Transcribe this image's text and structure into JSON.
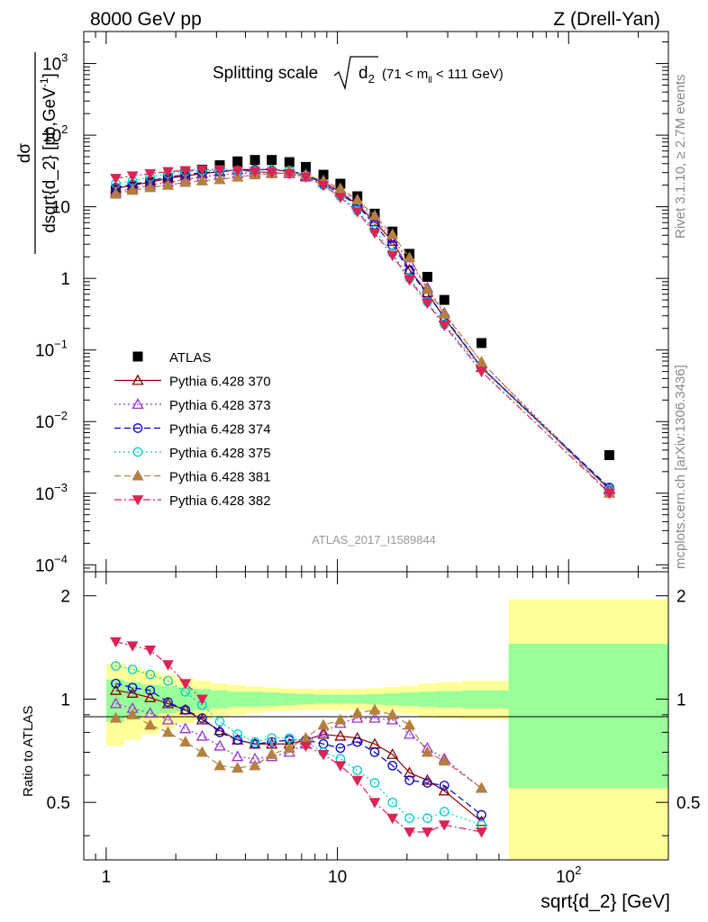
{
  "header": {
    "left": "8000 GeV pp",
    "right": "Z (Drell-Yan)",
    "side_top": "Rivet 3.1.10, ≥ 2.7M events",
    "side_bottom": "mcplots.cern.ch [arXiv:1306.3436]",
    "analysis_id": "ATLAS_2017_I1589844"
  },
  "title": {
    "prefix": "Splitting scale",
    "var": "d",
    "sub": "2",
    "cut_pre": "(71 < m",
    "cut_sub": "ll",
    "cut_post": " < 111 GeV)"
  },
  "axes": {
    "xlabel": "sqrt{d_2} [GeV]",
    "ylabel_top": "dσ",
    "ylabel_bottom": "dsqrt{d_2} [pb,GeV",
    "ylabel_sup": "-1",
    "ylabel_close": "]",
    "ratio_ylabel": "Ratio to ATLAS",
    "x_ticklabels": [
      {
        "v": 1,
        "base": "1",
        "exp": ""
      },
      {
        "v": 10,
        "base": "10",
        "exp": ""
      },
      {
        "v": 100,
        "base": "10",
        "exp": "2"
      }
    ],
    "y_ticklabels": [
      {
        "v": 1000,
        "base": "10",
        "exp": "3"
      },
      {
        "v": 100,
        "base": "10",
        "exp": "2"
      },
      {
        "v": 10,
        "base": "10",
        "exp": ""
      },
      {
        "v": 1,
        "base": "1",
        "exp": ""
      },
      {
        "v": 0.1,
        "base": "10",
        "exp": "−1"
      },
      {
        "v": 0.01,
        "base": "10",
        "exp": "−2"
      },
      {
        "v": 0.001,
        "base": "10",
        "exp": "−3"
      },
      {
        "v": 0.0001,
        "base": "10",
        "exp": "−4"
      }
    ],
    "ratio_ticklabels": [
      {
        "v": 2,
        "label": "2"
      },
      {
        "v": 1,
        "label": "1"
      },
      {
        "v": 0.5,
        "label": "0.5"
      }
    ]
  },
  "chart_data": {
    "type": "scatter",
    "x_scale": "log",
    "y_scale": "log",
    "xlim": [
      0.8,
      270
    ],
    "ylim": [
      8e-05,
      2800
    ],
    "ratio_ylim": [
      0.34,
      2.35
    ],
    "x": [
      1.1,
      1.3,
      1.55,
      1.85,
      2.2,
      2.6,
      3.1,
      3.7,
      4.4,
      5.2,
      6.2,
      7.3,
      8.7,
      10.3,
      12.2,
      14.5,
      17.3,
      20.5,
      24.5,
      29.0,
      42.0,
      150.0
    ],
    "series": [
      {
        "name": "ATLAS",
        "color": "#000000",
        "marker": "square",
        "line": "none",
        "values": [
          17,
          19,
          22,
          25,
          29,
          33,
          38,
          43,
          45,
          45,
          42,
          36,
          28,
          21,
          14,
          8,
          4.5,
          2.2,
          1.05,
          0.5,
          0.125,
          0.0034
        ]
      },
      {
        "name": "Pythia 6.428 370",
        "color": "#8b0000",
        "marker": "triangle-open",
        "line": "solid",
        "values": [
          18,
          20,
          22,
          25,
          27,
          29,
          31,
          33,
          33,
          33,
          31,
          27,
          22,
          16,
          10.7,
          6.2,
          3.3,
          1.32,
          0.63,
          0.28,
          0.057,
          0.00115
        ]
      },
      {
        "name": "Pythia 6.428 373",
        "color": "#9933cc",
        "marker": "triangle-open",
        "line": "dotted",
        "values": [
          16,
          18,
          20,
          22,
          24,
          26,
          28,
          29,
          30,
          30,
          29,
          26,
          22,
          17,
          11.8,
          6.8,
          3.6,
          1.68,
          0.74,
          0.33,
          0.067,
          0.0011
        ]
      },
      {
        "name": "Pythia 6.428 374",
        "color": "#0000cc",
        "marker": "circle-open",
        "line": "dashed",
        "values": [
          18.5,
          20.5,
          23,
          26,
          28,
          30,
          31,
          32,
          33,
          33,
          32,
          28,
          21,
          15,
          10.5,
          5.6,
          2.9,
          1.28,
          0.6,
          0.29,
          0.057,
          0.0012
        ]
      },
      {
        "name": "Pythia 6.428 375",
        "color": "#00cccc",
        "marker": "circle-open",
        "line": "dotted",
        "values": [
          21,
          23,
          26,
          29,
          31,
          32,
          32,
          32,
          32,
          33,
          32,
          27,
          20,
          14,
          8.8,
          4.7,
          2.25,
          1.0,
          0.47,
          0.23,
          0.055,
          0.00112
        ]
      },
      {
        "name": "Pythia 6.428 381",
        "color": "#b38040",
        "marker": "triangle",
        "line": "dashed",
        "values": [
          15,
          17,
          18.5,
          20,
          22,
          23,
          24,
          26,
          28,
          29,
          30,
          28,
          23,
          18,
          12.5,
          7.5,
          4.1,
          1.95,
          0.7,
          0.32,
          0.068,
          0.001
        ]
      },
      {
        "name": "Pythia 6.428 382",
        "color": "#dd2255",
        "marker": "triangle-down",
        "line": "dashdot",
        "values": [
          25,
          27,
          29,
          31,
          32,
          33,
          33,
          32,
          31,
          30,
          29,
          26,
          20,
          13.5,
          8.5,
          4.3,
          2.1,
          0.95,
          0.45,
          0.22,
          0.05,
          0.001
        ]
      }
    ],
    "ratios": [
      [
        1.06,
        1.04,
        1.01,
        0.97,
        0.93,
        0.87,
        0.81,
        0.76,
        0.74,
        0.74,
        0.74,
        0.76,
        0.79,
        0.78,
        0.77,
        0.74,
        0.69,
        0.61,
        0.58,
        0.54,
        0.44
      ],
      [
        0.97,
        0.94,
        0.91,
        0.87,
        0.82,
        0.78,
        0.73,
        0.68,
        0.67,
        0.68,
        0.7,
        0.74,
        0.8,
        0.85,
        0.88,
        0.88,
        0.87,
        0.79,
        0.72,
        0.67,
        0.55
      ],
      [
        1.11,
        1.08,
        1.06,
        0.98,
        0.93,
        0.88,
        0.8,
        0.76,
        0.74,
        0.75,
        0.76,
        0.76,
        0.74,
        0.72,
        0.75,
        0.7,
        0.64,
        0.58,
        0.57,
        0.56,
        0.46
      ],
      [
        1.25,
        1.22,
        1.18,
        1.13,
        1.05,
        0.96,
        0.86,
        0.79,
        0.75,
        0.77,
        0.77,
        0.75,
        0.7,
        0.67,
        0.62,
        0.57,
        0.5,
        0.45,
        0.45,
        0.47,
        0.43
      ],
      [
        0.88,
        0.9,
        0.84,
        0.8,
        0.75,
        0.7,
        0.64,
        0.63,
        0.64,
        0.69,
        0.72,
        0.77,
        0.84,
        0.87,
        0.91,
        0.93,
        0.9,
        0.84,
        0.7,
        0.66,
        0.55
      ],
      [
        1.47,
        1.43,
        1.39,
        1.26,
        1.11,
        1.0,
        null,
        null,
        null,
        null,
        null,
        0.73,
        0.69,
        0.64,
        0.58,
        0.5,
        0.45,
        0.41,
        0.41,
        0.43,
        0.41
      ]
    ],
    "band_edges": [
      1.0,
      1.2,
      1.42,
      1.7,
      2.0,
      2.4,
      2.85,
      3.4,
      4.0,
      4.8,
      5.7,
      6.7,
      8.0,
      9.5,
      11.2,
      13.3,
      15.8,
      18.8,
      22.4,
      26.6,
      34.5,
      55.0,
      270.0
    ],
    "stat_band": [
      0.14,
      0.12,
      0.1,
      0.09,
      0.08,
      0.07,
      0.06,
      0.05,
      0.05,
      0.045,
      0.04,
      0.035,
      0.03,
      0.03,
      0.03,
      0.035,
      0.04,
      0.045,
      0.05,
      0.055,
      0.06,
      0.45
    ],
    "sys_band": [
      0.27,
      0.24,
      0.21,
      0.18,
      0.15,
      0.13,
      0.11,
      0.1,
      0.09,
      0.08,
      0.075,
      0.07,
      0.07,
      0.07,
      0.07,
      0.075,
      0.085,
      0.095,
      0.11,
      0.12,
      0.13,
      0.95
    ],
    "colors": {
      "stat_band": "#99ff99",
      "sys_band": "#ffff99"
    },
    "legend_placement": "middle-left"
  }
}
